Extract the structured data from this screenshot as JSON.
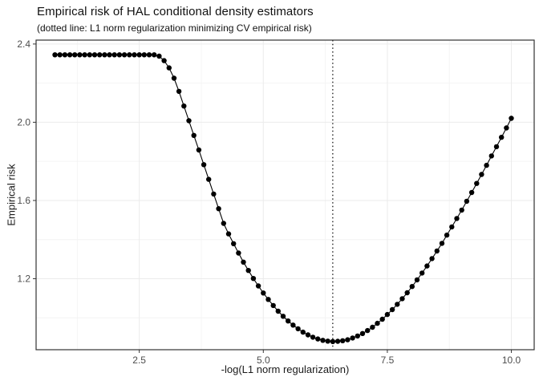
{
  "chart_data": {
    "type": "scatter",
    "title": "Empirical risk of HAL conditional density estimators",
    "subtitle": "(dotted line: L1 norm regularization minimizing CV empirical risk)",
    "xlabel": "-log(L1 norm regularization)",
    "ylabel": "Empirical risk",
    "xlim": [
      0.42,
      10.46
    ],
    "ylim": [
      0.837,
      2.42
    ],
    "x_ticks": [
      2.5,
      5.0,
      7.5,
      10.0
    ],
    "x_tick_labels": [
      "2.5",
      "5.0",
      "7.5",
      "10.0"
    ],
    "y_ticks": [
      1.2,
      1.6,
      2.0,
      2.4
    ],
    "y_tick_labels": [
      "1.2",
      "1.6",
      "2.0",
      "2.4"
    ],
    "x_minor": [
      1.25,
      3.75,
      6.25,
      8.75
    ],
    "y_minor": [
      1.0,
      1.4,
      1.8,
      2.2
    ],
    "grid": true,
    "legend": "none",
    "vline_x": 6.4,
    "vline_style": "dotted",
    "marker_color": "#000000",
    "line_color": "#000000",
    "grid_major_color": "#ebebeb",
    "grid_minor_color": "#f4f4f4",
    "panel_border_color": "#333333",
    "tick_label_color": "#4d4d4d",
    "points": [
      [
        0.8,
        2.345
      ],
      [
        0.9,
        2.345
      ],
      [
        1.0,
        2.345
      ],
      [
        1.1,
        2.345
      ],
      [
        1.2,
        2.345
      ],
      [
        1.3,
        2.345
      ],
      [
        1.4,
        2.345
      ],
      [
        1.5,
        2.345
      ],
      [
        1.6,
        2.345
      ],
      [
        1.7,
        2.345
      ],
      [
        1.8,
        2.345
      ],
      [
        1.9,
        2.345
      ],
      [
        2.0,
        2.345
      ],
      [
        2.1,
        2.345
      ],
      [
        2.2,
        2.345
      ],
      [
        2.3,
        2.345
      ],
      [
        2.4,
        2.345
      ],
      [
        2.5,
        2.345
      ],
      [
        2.6,
        2.345
      ],
      [
        2.7,
        2.345
      ],
      [
        2.8,
        2.345
      ],
      [
        2.9,
        2.338
      ],
      [
        3.0,
        2.315
      ],
      [
        3.1,
        2.278
      ],
      [
        3.2,
        2.225
      ],
      [
        3.3,
        2.158
      ],
      [
        3.4,
        2.083
      ],
      [
        3.5,
        2.008
      ],
      [
        3.6,
        1.933
      ],
      [
        3.7,
        1.858
      ],
      [
        3.8,
        1.783
      ],
      [
        3.9,
        1.708
      ],
      [
        4.0,
        1.633
      ],
      [
        4.1,
        1.558
      ],
      [
        4.2,
        1.483
      ],
      [
        4.3,
        1.429
      ],
      [
        4.4,
        1.379
      ],
      [
        4.5,
        1.331
      ],
      [
        4.6,
        1.285
      ],
      [
        4.7,
        1.242
      ],
      [
        4.8,
        1.201
      ],
      [
        4.9,
        1.163
      ],
      [
        5.0,
        1.127
      ],
      [
        5.1,
        1.094
      ],
      [
        5.2,
        1.063
      ],
      [
        5.3,
        1.034
      ],
      [
        5.4,
        1.008
      ],
      [
        5.5,
        0.984
      ],
      [
        5.6,
        0.963
      ],
      [
        5.7,
        0.944
      ],
      [
        5.8,
        0.927
      ],
      [
        5.9,
        0.913
      ],
      [
        6.0,
        0.901
      ],
      [
        6.1,
        0.892
      ],
      [
        6.2,
        0.885
      ],
      [
        6.3,
        0.881
      ],
      [
        6.4,
        0.879
      ],
      [
        6.5,
        0.88
      ],
      [
        6.6,
        0.883
      ],
      [
        6.7,
        0.888
      ],
      [
        6.8,
        0.897
      ],
      [
        6.9,
        0.907
      ],
      [
        7.0,
        0.92
      ],
      [
        7.1,
        0.935
      ],
      [
        7.2,
        0.952
      ],
      [
        7.3,
        0.972
      ],
      [
        7.4,
        0.993
      ],
      [
        7.5,
        1.017
      ],
      [
        7.6,
        1.042
      ],
      [
        7.7,
        1.069
      ],
      [
        7.8,
        1.098
      ],
      [
        7.9,
        1.128
      ],
      [
        8.0,
        1.16
      ],
      [
        8.1,
        1.194
      ],
      [
        8.2,
        1.229
      ],
      [
        8.3,
        1.265
      ],
      [
        8.4,
        1.303
      ],
      [
        8.5,
        1.342
      ],
      [
        8.6,
        1.381
      ],
      [
        8.7,
        1.423
      ],
      [
        8.8,
        1.465
      ],
      [
        8.9,
        1.508
      ],
      [
        9.0,
        1.551
      ],
      [
        9.1,
        1.596
      ],
      [
        9.2,
        1.641
      ],
      [
        9.3,
        1.687
      ],
      [
        9.4,
        1.733
      ],
      [
        9.5,
        1.78
      ],
      [
        9.6,
        1.828
      ],
      [
        9.7,
        1.875
      ],
      [
        9.8,
        1.923
      ],
      [
        9.9,
        1.971
      ],
      [
        10.0,
        2.02
      ]
    ]
  }
}
